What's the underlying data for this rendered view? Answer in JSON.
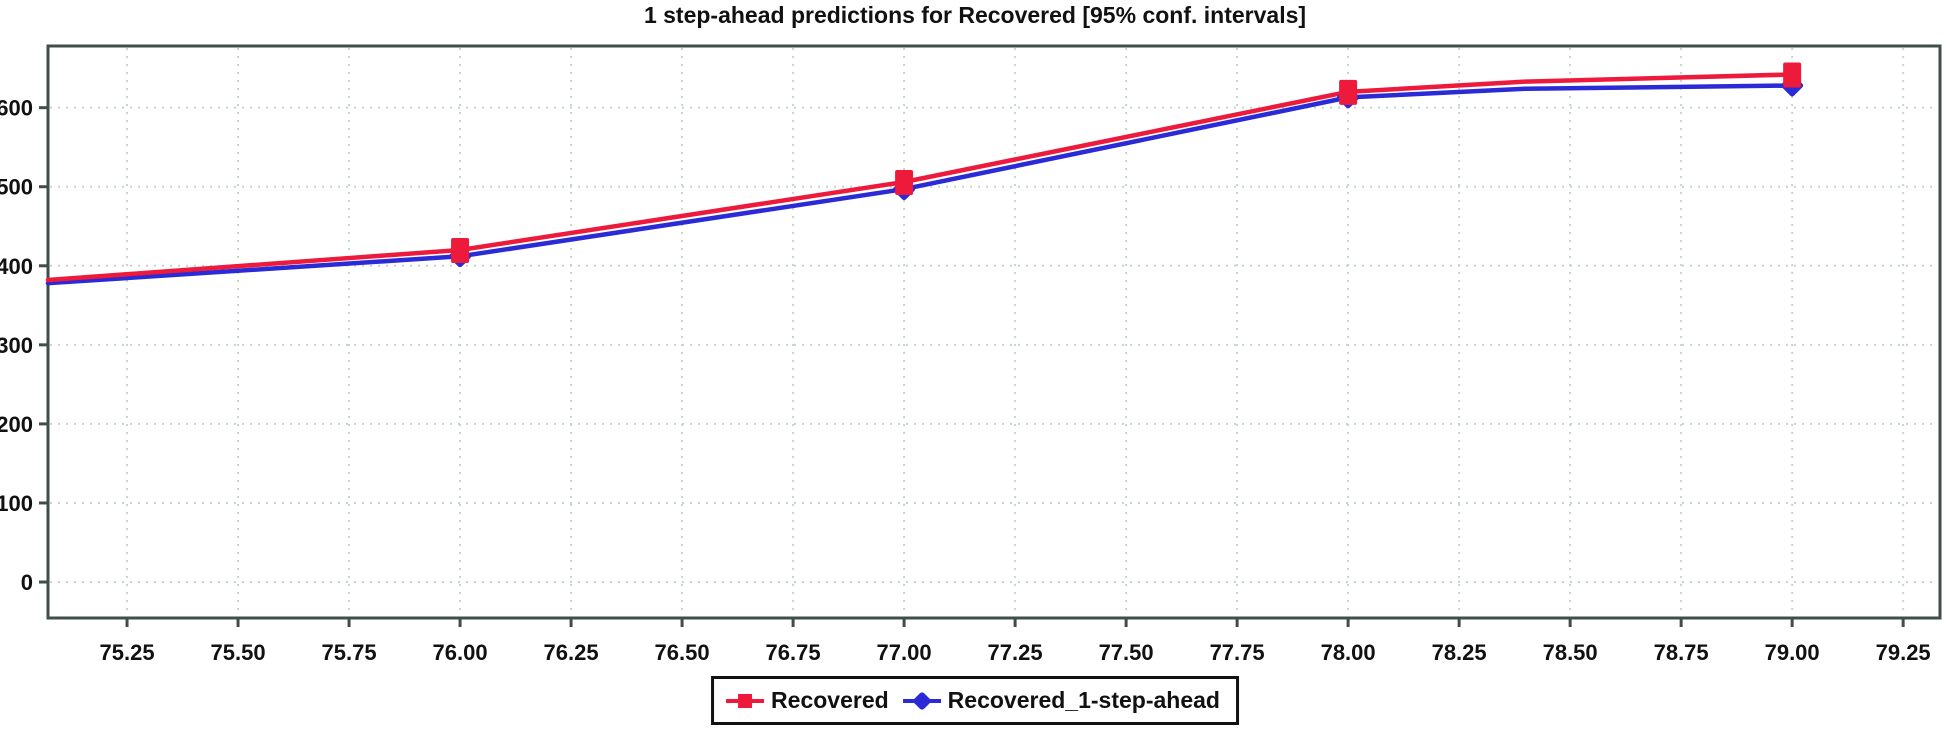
{
  "title": "1 step-ahead predictions for Recovered [95% conf. intervals]",
  "legend": {
    "items": [
      {
        "label": "Recovered",
        "marker": "square",
        "color": "#ee1a3c"
      },
      {
        "label": "Recovered_1-step-ahead",
        "marker": "diamond",
        "color": "#2a2ad6"
      }
    ]
  },
  "chart_data": {
    "type": "line",
    "title": "1 step-ahead predictions for Recovered [95% conf. intervals]",
    "xlabel": "",
    "ylabel": "",
    "xlim": [
      75.072,
      79.333
    ],
    "ylim": [
      -45.5,
      678
    ],
    "grid": true,
    "grid_style": "dotted",
    "legend_position": "bottom-center",
    "x_tick_labels": [
      "75.25",
      "75.50",
      "75.75",
      "76.00",
      "76.25",
      "76.50",
      "76.75",
      "77.00",
      "77.25",
      "77.50",
      "77.75",
      "78.00",
      "78.25",
      "78.50",
      "78.75",
      "79.00",
      "79.25"
    ],
    "y_tick_labels": [
      "0",
      "100",
      "200",
      "300",
      "400",
      "500",
      "600"
    ],
    "colors": {
      "grid": "#c6d4cf",
      "axis": "#3f4e4b",
      "tick_text": "#111111",
      "background": "#ffffff"
    },
    "series": [
      {
        "name": "Recovered_1-step-ahead",
        "color": "#2a2ad6",
        "marker": "diamond",
        "line_x": [
          75.072,
          76,
          77,
          78,
          78.4,
          79
        ],
        "line_y": [
          378,
          412,
          497,
          613,
          624,
          628
        ],
        "marker_x": [
          76,
          77,
          78,
          79
        ],
        "marker_y": [
          412,
          497,
          613,
          628
        ]
      },
      {
        "name": "Recovered",
        "color": "#ee1a3c",
        "marker": "square",
        "line_x": [
          75.072,
          76,
          77,
          78,
          78.4,
          79
        ],
        "line_y": [
          382,
          420,
          506,
          620,
          633,
          642
        ],
        "marker_x": [
          76,
          77,
          78,
          79
        ],
        "marker_y": [
          420,
          506,
          620,
          642
        ]
      }
    ]
  }
}
